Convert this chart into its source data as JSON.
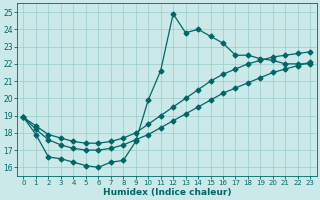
{
  "xlabel": "Humidex (Indice chaleur)",
  "bg_color": "#cce9e9",
  "grid_color": "#99cccc",
  "line_color": "#006666",
  "xlim": [
    -0.5,
    23.5
  ],
  "ylim": [
    15.5,
    25.5
  ],
  "xticks": [
    0,
    1,
    2,
    3,
    4,
    5,
    6,
    7,
    8,
    9,
    10,
    11,
    12,
    13,
    14,
    15,
    16,
    17,
    18,
    19,
    20,
    21,
    22,
    23
  ],
  "yticks": [
    16,
    17,
    18,
    19,
    20,
    21,
    22,
    23,
    24,
    25
  ],
  "line1_x": [
    0,
    1,
    2,
    3,
    4,
    5,
    6,
    7,
    8,
    9,
    10,
    11,
    12,
    13,
    14,
    15,
    16,
    17,
    18,
    19,
    20,
    21,
    22,
    23
  ],
  "line1_y": [
    18.9,
    17.9,
    16.6,
    16.5,
    16.3,
    16.1,
    16.0,
    16.3,
    16.4,
    17.5,
    19.9,
    21.6,
    24.9,
    23.8,
    24.0,
    23.6,
    23.2,
    22.5,
    22.5,
    22.3,
    22.2,
    22.0,
    22.0,
    22.0
  ],
  "line2_x": [
    0,
    1,
    2,
    3,
    4,
    5,
    6,
    7,
    8,
    9,
    10,
    11,
    12,
    13,
    14,
    15,
    16,
    17,
    18,
    19,
    20,
    21,
    22,
    23
  ],
  "line2_y": [
    18.9,
    18.2,
    17.6,
    17.3,
    17.1,
    17.0,
    17.0,
    17.1,
    17.3,
    17.6,
    17.9,
    18.3,
    18.7,
    19.1,
    19.5,
    19.9,
    20.3,
    20.6,
    20.9,
    21.2,
    21.5,
    21.7,
    21.9,
    22.1
  ],
  "line3_x": [
    0,
    1,
    2,
    3,
    4,
    5,
    6,
    7,
    8,
    9,
    10,
    11,
    12,
    13,
    14,
    15,
    16,
    17,
    18,
    19,
    20,
    21,
    22,
    23
  ],
  "line3_y": [
    18.9,
    18.4,
    17.9,
    17.7,
    17.5,
    17.4,
    17.4,
    17.5,
    17.7,
    18.0,
    18.5,
    19.0,
    19.5,
    20.0,
    20.5,
    21.0,
    21.4,
    21.7,
    22.0,
    22.2,
    22.4,
    22.5,
    22.6,
    22.7
  ],
  "markersize": 2.5,
  "linewidth": 0.9,
  "xlabel_fontsize": 6.5,
  "tick_fontsize": 5.0
}
